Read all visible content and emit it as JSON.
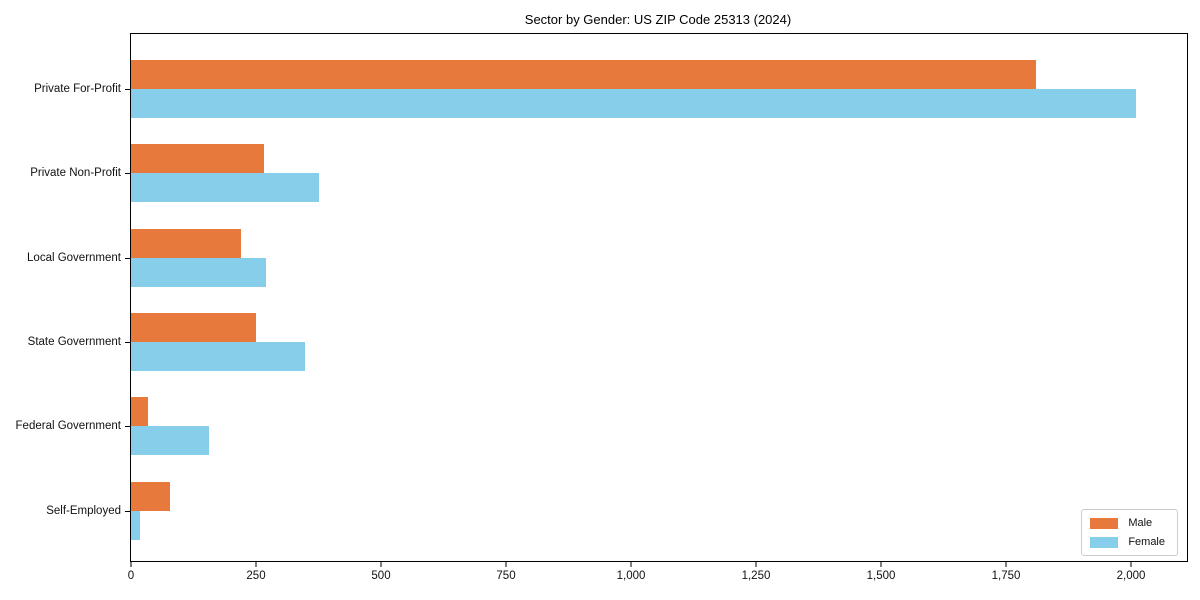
{
  "figure": {
    "title": "Sector by Gender: US ZIP Code 25313 (2024)"
  },
  "chart_data": {
    "type": "bar",
    "orientation": "horizontal",
    "title": "Sector by Gender: US ZIP Code 25313 (2024)",
    "categories": [
      "Private For-Profit",
      "Private Non-Profit",
      "Local Government",
      "State Government",
      "Federal Government",
      "Self-Employed"
    ],
    "series": [
      {
        "name": "Male",
        "color": "#E8793D",
        "values": [
          1810,
          265,
          220,
          250,
          33,
          78
        ]
      },
      {
        "name": "Female",
        "color": "#87CEEB",
        "values": [
          2010,
          375,
          270,
          348,
          155,
          18
        ]
      }
    ],
    "xlabel": "",
    "ylabel": "",
    "xlim": [
      0,
      2112
    ],
    "xticks": [
      0,
      250,
      500,
      750,
      1000,
      1250,
      1500,
      1750,
      2000
    ],
    "xtick_labels": [
      "0",
      "250",
      "500",
      "750",
      "1,000",
      "1,250",
      "1,500",
      "1,750",
      "2,000"
    ],
    "grid": false,
    "legend": {
      "position": "lower right"
    }
  }
}
